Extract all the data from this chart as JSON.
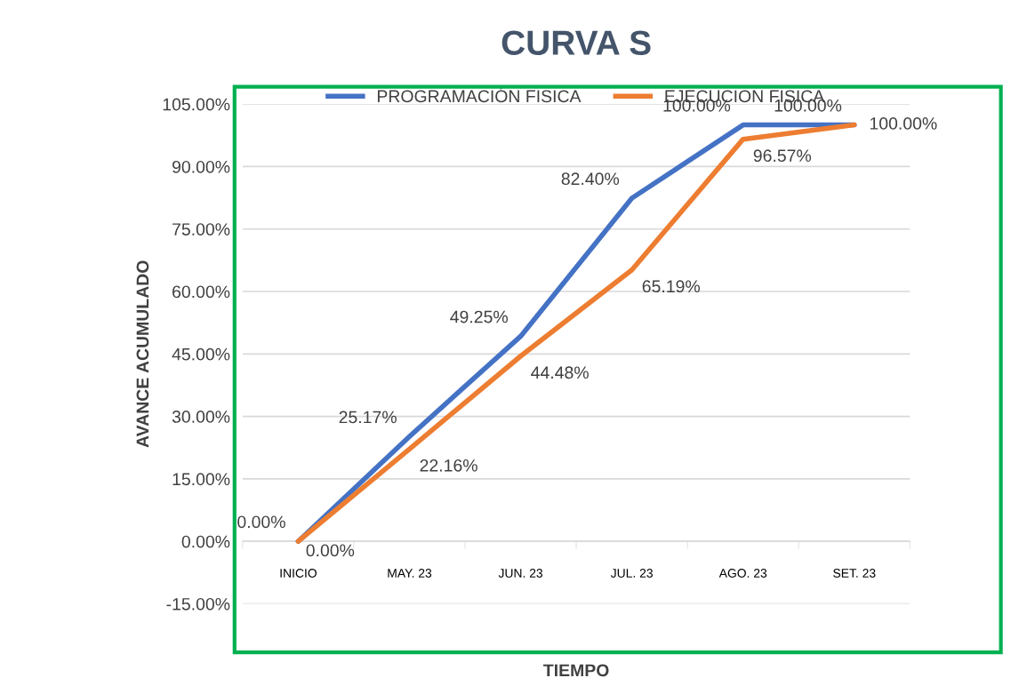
{
  "chart_data": {
    "type": "line",
    "title": "CURVA S",
    "xlabel": "TIEMPO",
    "ylabel": "AVANCE ACUMULADO",
    "categories": [
      "INICIO",
      "MAY. 23",
      "JUN. 23",
      "JUL. 23",
      "AGO. 23",
      "SET. 23"
    ],
    "series": [
      {
        "name": "PROGRAMACIÓN FISICA",
        "color": "#4472c4",
        "values": [
          0,
          25.17,
          49.25,
          82.4,
          100,
          100
        ],
        "value_labels": [
          "0.00%",
          "25.17%",
          "49.25%",
          "82.40%",
          "100.00%",
          "100.00%"
        ]
      },
      {
        "name": "EJECUCION FISICA",
        "color": "#ed7d31",
        "values": [
          0,
          22.16,
          44.48,
          65.19,
          96.57,
          100
        ],
        "value_labels": [
          "0.00%",
          "22.16%",
          "44.48%",
          "65.19%",
          "96.57%",
          "100.00%"
        ]
      }
    ],
    "ylim": [
      -15,
      105
    ],
    "yticks": [
      {
        "value": -15,
        "label": "-15.00%"
      },
      {
        "value": 0,
        "label": "0.00%"
      },
      {
        "value": 15,
        "label": "15.00%"
      },
      {
        "value": 30,
        "label": "30.00%"
      },
      {
        "value": 45,
        "label": "45.00%"
      },
      {
        "value": 60,
        "label": "60.00%"
      },
      {
        "value": 75,
        "label": "75.00%"
      },
      {
        "value": 90,
        "label": "90.00%"
      },
      {
        "value": 105,
        "label": "105.00%"
      }
    ],
    "grid": "y",
    "legend": "top",
    "marker": "none",
    "line_style": "solid"
  }
}
